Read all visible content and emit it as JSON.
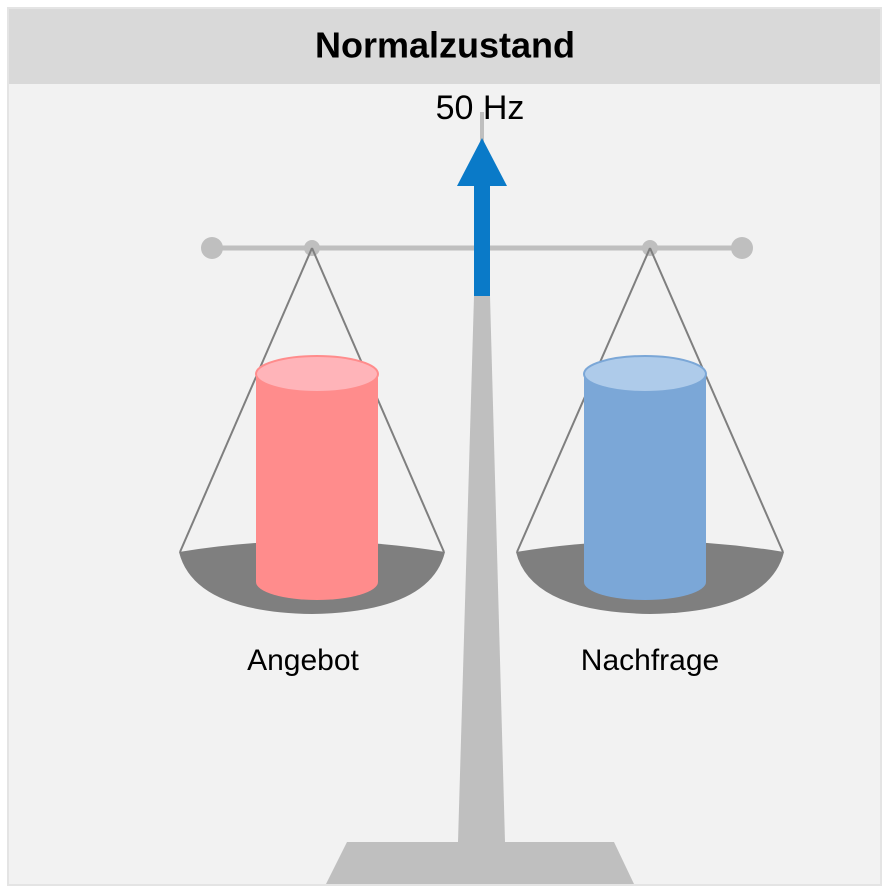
{
  "header": {
    "title": "Normalzustand"
  },
  "scale": {
    "frequency": "50 Hz",
    "left_label": "Angebot",
    "right_label": "Nachfrage"
  }
}
